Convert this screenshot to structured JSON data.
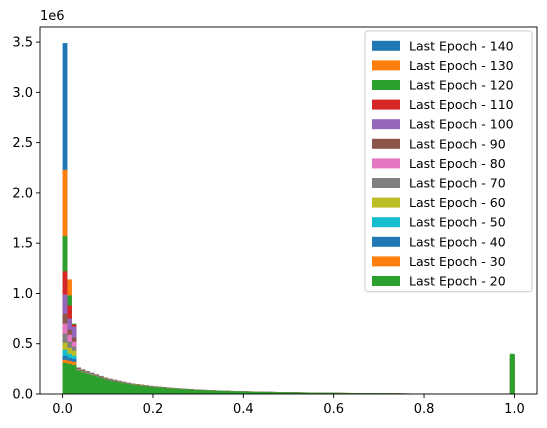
{
  "chart_data": {
    "type": "histogram",
    "title": "",
    "xlabel": "",
    "ylabel": "",
    "y_offset_label": "1e6",
    "xlim": [
      -0.05,
      1.05
    ],
    "ylim": [
      0,
      3.65
    ],
    "xticks": [
      {
        "value": 0.0,
        "label": "0.0"
      },
      {
        "value": 0.2,
        "label": "0.2"
      },
      {
        "value": 0.4,
        "label": "0.4"
      },
      {
        "value": 0.6,
        "label": "0.6"
      },
      {
        "value": 0.8,
        "label": "0.8"
      },
      {
        "value": 1.0,
        "label": "1.0"
      }
    ],
    "yticks": [
      {
        "value": 0.0,
        "label": "0.0"
      },
      {
        "value": 0.5,
        "label": "0.5"
      },
      {
        "value": 1.0,
        "label": "1.0"
      },
      {
        "value": 1.5,
        "label": "1.5"
      },
      {
        "value": 2.0,
        "label": "2.0"
      },
      {
        "value": 2.5,
        "label": "2.5"
      },
      {
        "value": 3.0,
        "label": "3.0"
      },
      {
        "value": 3.5,
        "label": "3.5"
      }
    ],
    "grid": false,
    "legend_position": "top-right",
    "bin_width": 0.01,
    "series": [
      {
        "name": "Last Epoch - 140",
        "color": "#1f77b4",
        "first_bins": [
          3.49,
          0.9,
          0.55
        ],
        "tail_scale": 0.98,
        "last_bin": 0.34
      },
      {
        "name": "Last Epoch - 130",
        "color": "#ff7f0e",
        "first_bins": [
          2.23,
          1.14,
          0.67
        ],
        "tail_scale": 0.97,
        "last_bin": 0.345
      },
      {
        "name": "Last Epoch - 120",
        "color": "#2ca02c",
        "first_bins": [
          1.57,
          0.98,
          0.7
        ],
        "tail_scale": 0.96,
        "last_bin": 0.35
      },
      {
        "name": "Last Epoch - 110",
        "color": "#d62728",
        "first_bins": [
          1.22,
          0.88,
          0.69
        ],
        "tail_scale": 0.95,
        "last_bin": 0.355
      },
      {
        "name": "Last Epoch - 100",
        "color": "#9467bd",
        "first_bins": [
          0.99,
          0.75,
          0.67
        ],
        "tail_scale": 0.94,
        "last_bin": 0.36
      },
      {
        "name": "Last Epoch - 90",
        "color": "#8c564b",
        "first_bins": [
          0.8,
          0.64,
          0.56
        ],
        "tail_scale": 0.93,
        "last_bin": 0.365
      },
      {
        "name": "Last Epoch - 80",
        "color": "#e377c2",
        "first_bins": [
          0.7,
          0.59,
          0.52
        ],
        "tail_scale": 0.92,
        "last_bin": 0.37
      },
      {
        "name": "Last Epoch - 70",
        "color": "#7f7f7f",
        "first_bins": [
          0.6,
          0.52,
          0.47
        ],
        "tail_scale": 0.91,
        "last_bin": 0.375
      },
      {
        "name": "Last Epoch - 60",
        "color": "#bcbd22",
        "first_bins": [
          0.51,
          0.46,
          0.43
        ],
        "tail_scale": 0.9,
        "last_bin": 0.38
      },
      {
        "name": "Last Epoch - 50",
        "color": "#17becf",
        "first_bins": [
          0.44,
          0.4,
          0.38
        ],
        "tail_scale": 0.89,
        "last_bin": 0.385
      },
      {
        "name": "Last Epoch - 40",
        "color": "#1f77b4",
        "first_bins": [
          0.38,
          0.36,
          0.35
        ],
        "tail_scale": 0.88,
        "last_bin": 0.39
      },
      {
        "name": "Last Epoch - 30",
        "color": "#ff7f0e",
        "first_bins": [
          0.34,
          0.33,
          0.32
        ],
        "tail_scale": 0.87,
        "last_bin": 0.395
      },
      {
        "name": "Last Epoch - 20",
        "color": "#2ca02c",
        "first_bins": [
          0.31,
          0.3,
          0.29
        ],
        "tail_scale": 0.86,
        "last_bin": 0.4
      }
    ],
    "tail_profile": [
      {
        "x": 0.03,
        "y": 0.28
      },
      {
        "x": 0.05,
        "y": 0.24
      },
      {
        "x": 0.1,
        "y": 0.16
      },
      {
        "x": 0.15,
        "y": 0.11
      },
      {
        "x": 0.2,
        "y": 0.08
      },
      {
        "x": 0.25,
        "y": 0.06
      },
      {
        "x": 0.3,
        "y": 0.045
      },
      {
        "x": 0.35,
        "y": 0.035
      },
      {
        "x": 0.4,
        "y": 0.028
      },
      {
        "x": 0.5,
        "y": 0.018
      },
      {
        "x": 0.6,
        "y": 0.012
      },
      {
        "x": 0.7,
        "y": 0.008
      },
      {
        "x": 0.8,
        "y": 0.004
      },
      {
        "x": 0.9,
        "y": 0.002
      },
      {
        "x": 0.98,
        "y": 0.001
      }
    ]
  }
}
